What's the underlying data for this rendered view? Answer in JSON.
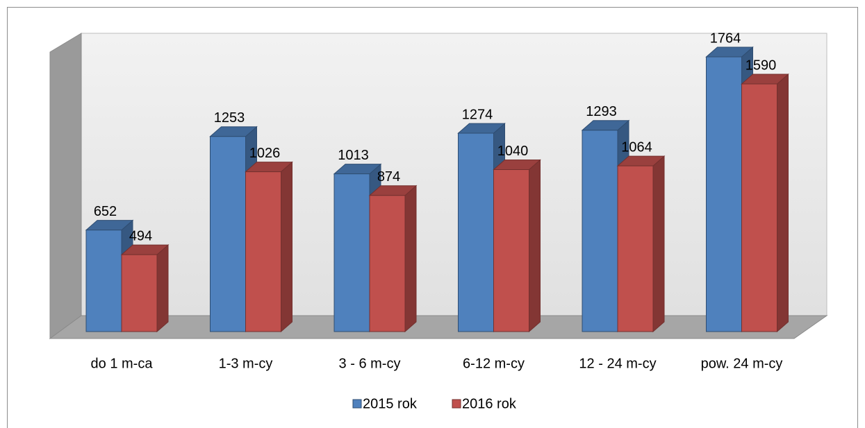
{
  "chart_data": {
    "type": "bar3d",
    "categories": [
      "do 1 m-ca",
      "1-3 m-cy",
      "3 - 6 m-cy",
      "6-12 m-cy",
      "12 - 24 m-cy",
      "pow. 24 m-cy"
    ],
    "series": [
      {
        "name": "2015 rok",
        "color": "#4f81bd",
        "values": [
          652,
          1253,
          1013,
          1274,
          1293,
          1764
        ]
      },
      {
        "name": "2016 rok",
        "color": "#c0504d",
        "values": [
          494,
          1026,
          874,
          1040,
          1064,
          1590
        ]
      }
    ],
    "legend": "bottom"
  }
}
